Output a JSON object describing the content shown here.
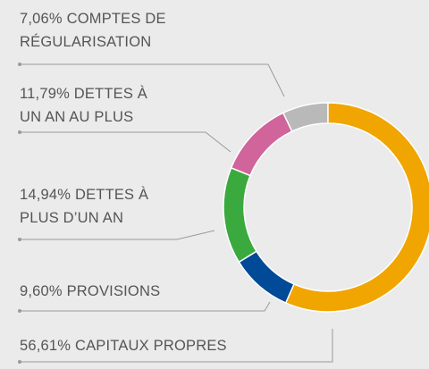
{
  "chart_data": {
    "type": "donut",
    "categories": [
      "COMPTES DE RÉGULARISATION",
      "DETTES À UN AN AU PLUS",
      "DETTES À PLUS D’UN AN",
      "PROVISIONS",
      "CAPITAUX PROPRES"
    ],
    "values": [
      7.06,
      11.79,
      14.94,
      9.6,
      56.61
    ],
    "value_labels": [
      "7,06%",
      "11,79%",
      "14,94%",
      "9,60%",
      "56,61%"
    ],
    "colors": [
      "#b9b9b9",
      "#d0649b",
      "#3aaa3f",
      "#004a97",
      "#f0a500"
    ]
  }
}
